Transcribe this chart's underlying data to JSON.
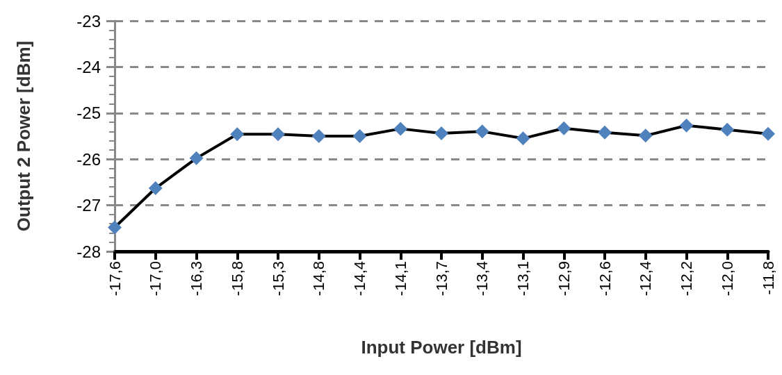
{
  "chart_data": {
    "type": "line",
    "xlabel": "Input Power [dBm]",
    "ylabel": "Output 2 Power [dBm]",
    "categories": [
      "-17,6",
      "-17,0",
      "-16,3",
      "-15,8",
      "-15,3",
      "-14,8",
      "-14,4",
      "-14,1",
      "-13,7",
      "-13,4",
      "-13,1",
      "-12,9",
      "-12,6",
      "-12,4",
      "-12,2",
      "-12,0",
      "-11,8"
    ],
    "series": [
      {
        "color": "#4f81bd",
        "values": [
          -27.48,
          -26.63,
          -25.98,
          -25.46,
          -25.46,
          -25.5,
          -25.5,
          -25.34,
          -25.44,
          -25.4,
          -25.55,
          -25.33,
          -25.42,
          -25.49,
          -25.27,
          -25.36,
          -25.45
        ]
      }
    ],
    "ylim": [
      -28,
      -23
    ],
    "yticks": [
      -28,
      -27,
      -26,
      -25,
      -24,
      -23
    ],
    "grid": "y",
    "marker": "diamond",
    "line_style": "solid"
  }
}
